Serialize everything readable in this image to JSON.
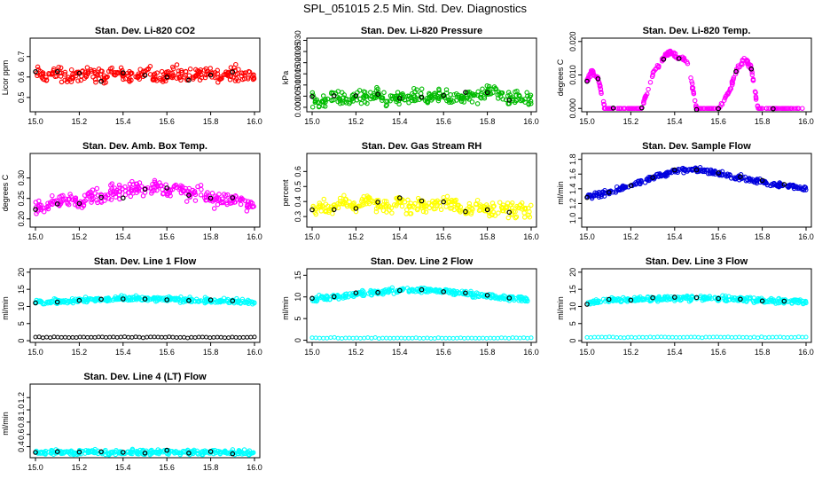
{
  "title": "SPL_051015  2.5 Min. Std. Dev. Diagnostics",
  "chart_data": [
    {
      "type": "scatter",
      "title": "Stan. Dev. Li-820 CO2",
      "ylabel": "Licor ppm",
      "color": "#ff0000",
      "xlim": [
        15.0,
        16.0
      ],
      "ylim": [
        0.43,
        0.79
      ],
      "yticks": [
        0.5,
        0.6,
        0.7
      ],
      "ytick_labels": [
        "0.5",
        "0.6",
        "0.7"
      ],
      "xticks": [
        15.0,
        15.2,
        15.4,
        15.6,
        15.8,
        16.0
      ],
      "xtick_labels": [
        "15.0",
        "15.2",
        "15.4",
        "15.6",
        "15.8",
        "16.0"
      ],
      "x": [
        15.0,
        15.05,
        15.1,
        15.15,
        15.2,
        15.25,
        15.3,
        15.35,
        15.4,
        15.45,
        15.5,
        15.55,
        15.6,
        15.65,
        15.7,
        15.75,
        15.8,
        15.85,
        15.9,
        15.95,
        16.0
      ],
      "y": [
        0.62,
        0.6,
        0.63,
        0.59,
        0.61,
        0.62,
        0.6,
        0.63,
        0.61,
        0.6,
        0.62,
        0.59,
        0.61,
        0.63,
        0.6,
        0.62,
        0.61,
        0.6,
        0.62,
        0.61,
        0.6
      ]
    },
    {
      "type": "scatter",
      "title": "Stan. Dev. Li-820 Pressure",
      "ylabel": "kPa",
      "color": "#00bb00",
      "xlim": [
        15.0,
        16.0
      ],
      "ylim": [
        -0.002,
        0.031
      ],
      "yticks": [
        0.0,
        0.005,
        0.01,
        0.015,
        0.02,
        0.025,
        0.03
      ],
      "ytick_labels": [
        "0.000",
        "0.005",
        "0.010",
        "0.015",
        "0.020",
        "0.025",
        "0.030"
      ],
      "xticks": [
        15.0,
        15.2,
        15.4,
        15.6,
        15.8,
        16.0
      ],
      "xtick_labels": [
        "15.0",
        "15.2",
        "15.4",
        "15.6",
        "15.8",
        "16.0"
      ],
      "x": [
        15.0,
        15.05,
        15.1,
        15.15,
        15.2,
        15.25,
        15.3,
        15.35,
        15.4,
        15.45,
        15.5,
        15.55,
        15.6,
        15.65,
        15.7,
        15.75,
        15.8,
        15.85,
        15.9,
        15.95,
        16.0
      ],
      "y": [
        0.004,
        0.002,
        0.006,
        0.003,
        0.005,
        0.004,
        0.006,
        0.003,
        0.005,
        0.004,
        0.006,
        0.004,
        0.005,
        0.003,
        0.006,
        0.004,
        0.007,
        0.006,
        0.004,
        0.005,
        0.003
      ]
    },
    {
      "type": "scatter",
      "title": "Stan. Dev. Li-820 Temp.",
      "ylabel": "degrees C",
      "color": "#ff00ff",
      "xlim": [
        15.0,
        16.0
      ],
      "ylim": [
        -0.001,
        0.021
      ],
      "yticks": [
        0.0,
        0.01,
        0.02
      ],
      "ytick_labels": [
        "0.000",
        "0.010",
        "0.020"
      ],
      "xticks": [
        15.0,
        15.2,
        15.4,
        15.6,
        15.8,
        16.0
      ],
      "xtick_labels": [
        "15.0",
        "15.2",
        "15.4",
        "15.6",
        "15.8",
        "16.0"
      ],
      "x": [
        15.0,
        15.02,
        15.05,
        15.08,
        15.12,
        15.2,
        15.25,
        15.3,
        15.35,
        15.38,
        15.42,
        15.46,
        15.5,
        15.55,
        15.6,
        15.65,
        15.68,
        15.72,
        15.75,
        15.78,
        15.85,
        15.9,
        16.0
      ],
      "y": [
        0.008,
        0.011,
        0.009,
        0.0,
        0.0,
        0.0,
        0.0,
        0.01,
        0.015,
        0.017,
        0.015,
        0.014,
        0.0,
        0.0,
        0.0,
        0.005,
        0.011,
        0.015,
        0.012,
        0.0,
        0.0,
        0.0,
        0.0
      ]
    },
    {
      "type": "scatter",
      "title": "Stan. Dev. Amb. Box Temp.",
      "ylabel": "degrees C",
      "color": "#ff00ff",
      "xlim": [
        15.0,
        16.0
      ],
      "ylim": [
        0.18,
        0.36
      ],
      "yticks": [
        0.2,
        0.25,
        0.3
      ],
      "ytick_labels": [
        "0.20",
        "0.25",
        "0.30"
      ],
      "xticks": [
        15.0,
        15.2,
        15.4,
        15.6,
        15.8,
        16.0
      ],
      "xtick_labels": [
        "15.0",
        "15.2",
        "15.4",
        "15.6",
        "15.8",
        "16.0"
      ],
      "x": [
        15.0,
        15.05,
        15.1,
        15.15,
        15.2,
        15.25,
        15.3,
        15.35,
        15.4,
        15.45,
        15.5,
        15.55,
        15.6,
        15.65,
        15.7,
        15.75,
        15.8,
        15.85,
        15.9,
        15.95,
        16.0
      ],
      "y": [
        0.22,
        0.23,
        0.24,
        0.25,
        0.24,
        0.26,
        0.25,
        0.27,
        0.26,
        0.28,
        0.27,
        0.28,
        0.27,
        0.28,
        0.26,
        0.27,
        0.25,
        0.24,
        0.25,
        0.24,
        0.23
      ]
    },
    {
      "type": "scatter",
      "title": "Stan. Dev. Gas Stream RH",
      "ylabel": "percent",
      "color": "#ffff00",
      "xlim": [
        15.0,
        16.0
      ],
      "ylim": [
        0.23,
        0.72
      ],
      "yticks": [
        0.3,
        0.4,
        0.5,
        0.6
      ],
      "ytick_labels": [
        "0.3",
        "0.4",
        "0.5",
        "0.6"
      ],
      "xticks": [
        15.0,
        15.2,
        15.4,
        15.6,
        15.8,
        16.0
      ],
      "xtick_labels": [
        "15.0",
        "15.2",
        "15.4",
        "15.6",
        "15.8",
        "16.0"
      ],
      "x": [
        15.0,
        15.05,
        15.1,
        15.15,
        15.2,
        15.25,
        15.3,
        15.35,
        15.4,
        15.45,
        15.5,
        15.55,
        15.6,
        15.65,
        15.7,
        15.75,
        15.8,
        15.85,
        15.9,
        15.95,
        16.0
      ],
      "y": [
        0.33,
        0.38,
        0.35,
        0.4,
        0.36,
        0.42,
        0.38,
        0.37,
        0.41,
        0.35,
        0.39,
        0.36,
        0.4,
        0.38,
        0.35,
        0.37,
        0.34,
        0.36,
        0.33,
        0.35,
        0.32
      ]
    },
    {
      "type": "scatter",
      "title": "Stan. Dev. Sample Flow",
      "ylabel": "ml/min",
      "color": "#0000dd",
      "xlim": [
        15.0,
        16.0
      ],
      "ylim": [
        0.88,
        1.88
      ],
      "yticks": [
        1.0,
        1.2,
        1.4,
        1.6,
        1.8
      ],
      "ytick_labels": [
        "1.0",
        "1.2",
        "1.4",
        "1.6",
        "1.8"
      ],
      "xticks": [
        15.0,
        15.2,
        15.4,
        15.6,
        15.8,
        16.0
      ],
      "xtick_labels": [
        "15.0",
        "15.2",
        "15.4",
        "15.6",
        "15.8",
        "16.0"
      ],
      "x": [
        15.0,
        15.05,
        15.1,
        15.15,
        15.2,
        15.25,
        15.3,
        15.35,
        15.4,
        15.45,
        15.5,
        15.55,
        15.6,
        15.65,
        15.7,
        15.75,
        15.8,
        15.85,
        15.9,
        15.95,
        16.0
      ],
      "y": [
        1.3,
        1.32,
        1.35,
        1.4,
        1.45,
        1.5,
        1.55,
        1.6,
        1.64,
        1.66,
        1.66,
        1.64,
        1.62,
        1.58,
        1.55,
        1.52,
        1.5,
        1.47,
        1.45,
        1.43,
        1.4
      ]
    },
    {
      "type": "scatter",
      "title": "Stan. Dev. Line 1 Flow",
      "ylabel": "ml/min",
      "color": "#00ffff",
      "xlim": [
        15.0,
        16.0
      ],
      "ylim": [
        -0.5,
        21
      ],
      "yticks": [
        0,
        5,
        10,
        15,
        20
      ],
      "ytick_labels": [
        "0",
        "5",
        "10",
        "15",
        "20"
      ],
      "xticks": [
        15.0,
        15.2,
        15.4,
        15.6,
        15.8,
        16.0
      ],
      "xtick_labels": [
        "15.0",
        "15.2",
        "15.4",
        "15.6",
        "15.8",
        "16.0"
      ],
      "x": [
        15.0,
        15.05,
        15.1,
        15.15,
        15.2,
        15.25,
        15.3,
        15.35,
        15.4,
        15.45,
        15.5,
        15.55,
        15.6,
        15.65,
        15.7,
        15.75,
        15.8,
        15.85,
        15.9,
        15.95,
        16.0
      ],
      "y": [
        11.0,
        11.3,
        11.5,
        11.6,
        11.8,
        11.9,
        12.0,
        12.1,
        12.2,
        12.2,
        12.2,
        12.1,
        12.0,
        12.0,
        11.9,
        11.8,
        11.7,
        11.6,
        11.5,
        11.4,
        11.2
      ],
      "y_secondary": 1.0
    },
    {
      "type": "scatter",
      "title": "Stan. Dev. Line 2 Flow",
      "ylabel": "ml/min",
      "color": "#00ffff",
      "xlim": [
        15.0,
        16.0
      ],
      "ylim": [
        -0.5,
        16.5
      ],
      "yticks": [
        0,
        5,
        10,
        15
      ],
      "ytick_labels": [
        "0",
        "5",
        "10",
        "15"
      ],
      "xticks": [
        15.0,
        15.2,
        15.4,
        15.6,
        15.8,
        16.0
      ],
      "xtick_labels": [
        "15.0",
        "15.2",
        "15.4",
        "15.6",
        "15.8",
        "16.0"
      ],
      "x": [
        15.0,
        15.05,
        15.1,
        15.15,
        15.2,
        15.25,
        15.3,
        15.35,
        15.4,
        15.45,
        15.5,
        15.55,
        15.6,
        15.65,
        15.7,
        15.75,
        15.8,
        15.85,
        15.9,
        15.95,
        16.0
      ],
      "y": [
        9.5,
        9.8,
        10.0,
        10.3,
        10.6,
        10.9,
        11.1,
        11.3,
        11.5,
        11.6,
        11.6,
        11.5,
        11.3,
        11.1,
        10.8,
        10.5,
        10.2,
        9.9,
        9.7,
        9.5,
        9.3
      ],
      "y_secondary": 0.5
    },
    {
      "type": "scatter",
      "title": "Stan. Dev. Line 3 Flow",
      "ylabel": "ml/min",
      "color": "#00ffff",
      "xlim": [
        15.0,
        16.0
      ],
      "ylim": [
        -0.5,
        21
      ],
      "yticks": [
        0,
        5,
        10,
        15,
        20
      ],
      "ytick_labels": [
        "0",
        "5",
        "10",
        "15",
        "20"
      ],
      "xticks": [
        15.0,
        15.2,
        15.4,
        15.6,
        15.8,
        16.0
      ],
      "xtick_labels": [
        "15.0",
        "15.2",
        "15.4",
        "15.6",
        "15.8",
        "16.0"
      ],
      "x": [
        15.0,
        15.05,
        15.1,
        15.15,
        15.2,
        15.25,
        15.3,
        15.35,
        15.4,
        15.45,
        15.5,
        15.55,
        15.6,
        15.65,
        15.7,
        15.75,
        15.8,
        15.85,
        15.9,
        15.95,
        16.0
      ],
      "y": [
        11.0,
        11.5,
        11.8,
        12.0,
        12.1,
        12.2,
        12.3,
        12.4,
        12.4,
        12.5,
        12.5,
        12.4,
        12.3,
        12.2,
        12.1,
        12.0,
        11.8,
        11.7,
        11.6,
        11.5,
        11.3
      ],
      "y_secondary": 1.0
    },
    {
      "type": "scatter",
      "title": "Stan. Dev. Line 4 (LT) Flow",
      "ylabel": "ml/min",
      "color": "#00ffff",
      "xlim": [
        15.0,
        16.0
      ],
      "ylim": [
        0.22,
        1.42
      ],
      "yticks": [
        0.4,
        0.6,
        0.8,
        1.0,
        1.2
      ],
      "ytick_labels": [
        "0.4",
        "0.6",
        "0.8",
        "1.0",
        "1.2"
      ],
      "xticks": [
        15.0,
        15.2,
        15.4,
        15.6,
        15.8,
        16.0
      ],
      "xtick_labels": [
        "15.0",
        "15.2",
        "15.4",
        "15.6",
        "15.8",
        "16.0"
      ],
      "x": [
        15.0,
        15.05,
        15.1,
        15.15,
        15.2,
        15.25,
        15.3,
        15.35,
        15.4,
        15.45,
        15.5,
        15.55,
        15.6,
        15.65,
        15.7,
        15.75,
        15.8,
        15.85,
        15.9,
        15.95,
        16.0
      ],
      "y": [
        0.3,
        0.31,
        0.32,
        0.3,
        0.31,
        0.32,
        0.3,
        0.31,
        0.31,
        0.32,
        0.3,
        0.31,
        0.32,
        0.3,
        0.31,
        0.3,
        0.32,
        0.31,
        0.3,
        0.31,
        0.3
      ]
    }
  ]
}
